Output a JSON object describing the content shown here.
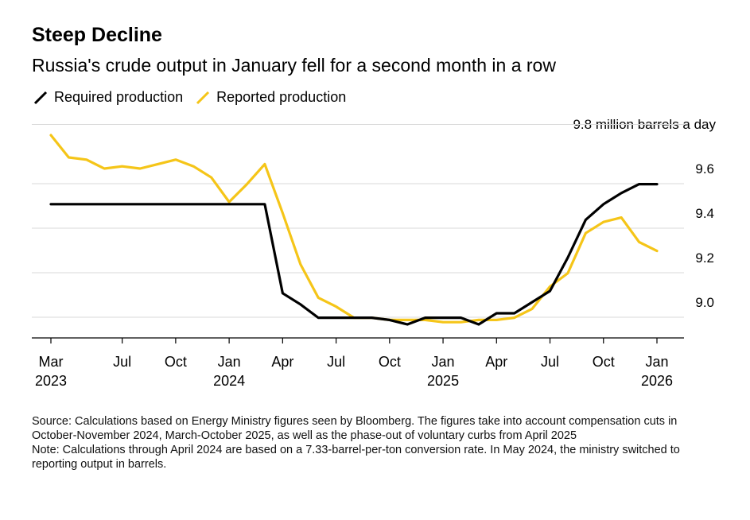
{
  "chart_data": {
    "type": "line",
    "title": "Steep Decline",
    "subtitle": "Russia's crude output in January fell for a second month in a row",
    "unit_label": "9.8 million barrels a day",
    "ylim": [
      8.8,
      9.8
    ],
    "yticks": [
      "9.6",
      "9.4",
      "9.2",
      "9.0"
    ],
    "ytick_values": [
      9.6,
      9.4,
      9.2,
      9.0
    ],
    "x_tick_labels": [
      {
        "month": "Mar",
        "year": "2023",
        "index": 0
      },
      {
        "month": "Jul",
        "year": "",
        "index": 4
      },
      {
        "month": "Oct",
        "year": "",
        "index": 7
      },
      {
        "month": "Jan",
        "year": "2024",
        "index": 10
      },
      {
        "month": "Apr",
        "year": "",
        "index": 13
      },
      {
        "month": "Jul",
        "year": "",
        "index": 16
      },
      {
        "month": "Oct",
        "year": "",
        "index": 19
      },
      {
        "month": "Jan",
        "year": "2025",
        "index": 22
      },
      {
        "month": "Apr",
        "year": "",
        "index": 25
      },
      {
        "month": "Jul",
        "year": "",
        "index": 28
      },
      {
        "month": "Oct",
        "year": "",
        "index": 31
      },
      {
        "month": "Jan",
        "year": "2026",
        "index": 34
      }
    ],
    "series": [
      {
        "name": "Required production",
        "color": "#000000",
        "values": [
          9.44,
          9.44,
          9.44,
          9.44,
          9.44,
          9.44,
          9.44,
          9.44,
          9.44,
          9.44,
          9.44,
          9.44,
          9.44,
          9.04,
          8.99,
          8.93,
          8.93,
          8.93,
          8.93,
          8.92,
          8.9,
          8.93,
          8.93,
          8.93,
          8.9,
          8.95,
          8.95,
          9.0,
          9.05,
          9.2,
          9.37,
          9.44,
          9.49,
          9.53,
          9.53
        ]
      },
      {
        "name": "Reported production",
        "color": "#f5c518",
        "values": [
          9.75,
          9.65,
          9.64,
          9.6,
          9.61,
          9.6,
          9.62,
          9.64,
          9.61,
          9.56,
          9.45,
          9.53,
          9.62,
          9.4,
          9.17,
          9.02,
          8.98,
          8.93,
          8.93,
          8.92,
          8.92,
          8.92,
          8.91,
          8.91,
          8.92,
          8.92,
          8.93,
          8.97,
          9.07,
          9.13,
          9.31,
          9.36,
          9.38,
          9.27,
          9.23
        ]
      }
    ]
  },
  "legend": {
    "required": "Required production",
    "reported": "Reported production"
  },
  "notes": {
    "source": "Source: Calculations based on Energy Ministry figures seen by Bloomberg. The figures take into account compensation cuts in October-November 2024, March-October 2025, as well as the phase-out of voluntary curbs from April 2025",
    "note": "Note: Calculations through April 2024 are based on a 7.33-barrel-per-ton conversion rate. In May 2024, the ministry switched to reporting output in barrels."
  },
  "colors": {
    "required": "#000000",
    "reported": "#f5c518",
    "grid": "#d9d9d9",
    "axis": "#000000"
  }
}
